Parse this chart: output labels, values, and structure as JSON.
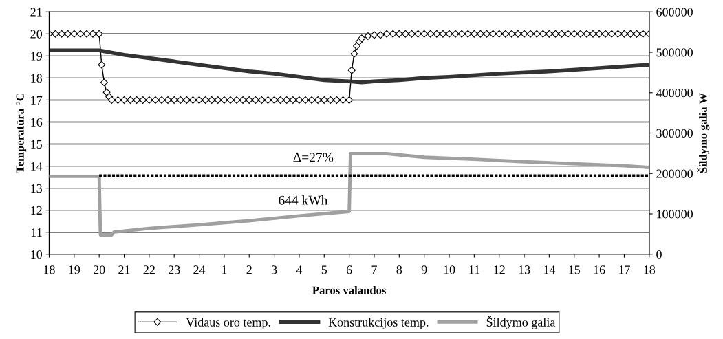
{
  "chart_data": {
    "type": "line",
    "xlabel": "Paros valandos",
    "ylabel": "Temperatūra °C",
    "y2label": "Šildymo galia W",
    "xlim": [
      "2000-01-01T18:00",
      "2000-01-02T18:00"
    ],
    "xticks": [
      {
        "value": "2000-01-01T18:00",
        "label": "18"
      },
      {
        "value": "2000-01-01T19:00",
        "label": "19"
      },
      {
        "value": "2000-01-01T20:00",
        "label": "20"
      },
      {
        "value": "2000-01-01T21:00",
        "label": "21"
      },
      {
        "value": "2000-01-01T22:00",
        "label": "22"
      },
      {
        "value": "2000-01-01T23:00",
        "label": "23"
      },
      {
        "value": "2000-01-02T00:00",
        "label": "24"
      },
      {
        "value": "2000-01-02T01:00",
        "label": "1"
      },
      {
        "value": "2000-01-02T02:00",
        "label": "2"
      },
      {
        "value": "2000-01-02T03:00",
        "label": "3"
      },
      {
        "value": "2000-01-02T04:00",
        "label": "4"
      },
      {
        "value": "2000-01-02T05:00",
        "label": "5"
      },
      {
        "value": "2000-01-02T06:00",
        "label": "6"
      },
      {
        "value": "2000-01-02T07:00",
        "label": "7"
      },
      {
        "value": "2000-01-02T08:00",
        "label": "8"
      },
      {
        "value": "2000-01-02T09:00",
        "label": "9"
      },
      {
        "value": "2000-01-02T10:00",
        "label": "10"
      },
      {
        "value": "2000-01-02T11:00",
        "label": "11"
      },
      {
        "value": "2000-01-02T12:00",
        "label": "12"
      },
      {
        "value": "2000-01-02T13:00",
        "label": "13"
      },
      {
        "value": "2000-01-02T14:00",
        "label": "14"
      },
      {
        "value": "2000-01-02T15:00",
        "label": "15"
      },
      {
        "value": "2000-01-02T16:00",
        "label": "16"
      },
      {
        "value": "2000-01-02T17:00",
        "label": "17"
      },
      {
        "value": "2000-01-02T18:00",
        "label": "18"
      }
    ],
    "ylim": [
      10,
      21
    ],
    "yticks": [
      10,
      11,
      12,
      13,
      14,
      15,
      16,
      17,
      18,
      19,
      20,
      21
    ],
    "y2lim": [
      0,
      600000
    ],
    "y2ticks": [
      0,
      100000,
      200000,
      300000,
      400000,
      500000,
      600000
    ],
    "grid": "y",
    "legend": "bottom",
    "annotations": [
      "Δ=27%",
      "644 kWh"
    ],
    "series": [
      {
        "name": "Vidaus oro temp.",
        "color": "#000000",
        "marker": "diamond",
        "line_style": "solid",
        "x": [
          "2000-01-01T18:00",
          "2000-01-01T18:15",
          "2000-01-01T18:30",
          "2000-01-01T18:45",
          "2000-01-01T19:00",
          "2000-01-01T19:15",
          "2000-01-01T19:30",
          "2000-01-01T19:45",
          "2000-01-01T20:00",
          "2000-01-01T20:06",
          "2000-01-01T20:12",
          "2000-01-01T20:18",
          "2000-01-01T20:24",
          "2000-01-01T20:30",
          "2000-01-01T20:45",
          "2000-01-01T21:00",
          "2000-01-01T21:15",
          "2000-01-01T21:30",
          "2000-01-01T21:45",
          "2000-01-01T22:00",
          "2000-01-01T22:15",
          "2000-01-01T22:30",
          "2000-01-01T22:45",
          "2000-01-01T23:00",
          "2000-01-01T23:15",
          "2000-01-01T23:30",
          "2000-01-01T23:45",
          "2000-01-02T00:00",
          "2000-01-02T00:15",
          "2000-01-02T00:30",
          "2000-01-02T00:45",
          "2000-01-02T01:00",
          "2000-01-02T01:15",
          "2000-01-02T01:30",
          "2000-01-02T01:45",
          "2000-01-02T02:00",
          "2000-01-02T02:15",
          "2000-01-02T02:30",
          "2000-01-02T02:45",
          "2000-01-02T03:00",
          "2000-01-02T03:15",
          "2000-01-02T03:30",
          "2000-01-02T03:45",
          "2000-01-02T04:00",
          "2000-01-02T04:15",
          "2000-01-02T04:30",
          "2000-01-02T04:45",
          "2000-01-02T05:00",
          "2000-01-02T05:15",
          "2000-01-02T05:30",
          "2000-01-02T05:45",
          "2000-01-02T06:00",
          "2000-01-02T06:06",
          "2000-01-02T06:12",
          "2000-01-02T06:18",
          "2000-01-02T06:24",
          "2000-01-02T06:30",
          "2000-01-02T06:45",
          "2000-01-02T07:00",
          "2000-01-02T07:15",
          "2000-01-02T07:30",
          "2000-01-02T07:45",
          "2000-01-02T08:00",
          "2000-01-02T08:15",
          "2000-01-02T08:30",
          "2000-01-02T08:45",
          "2000-01-02T09:00",
          "2000-01-02T09:15",
          "2000-01-02T09:30",
          "2000-01-02T09:45",
          "2000-01-02T10:00",
          "2000-01-02T10:15",
          "2000-01-02T10:30",
          "2000-01-02T10:45",
          "2000-01-02T11:00",
          "2000-01-02T11:15",
          "2000-01-02T11:30",
          "2000-01-02T11:45",
          "2000-01-02T12:00",
          "2000-01-02T12:15",
          "2000-01-02T12:30",
          "2000-01-02T12:45",
          "2000-01-02T13:00",
          "2000-01-02T13:15",
          "2000-01-02T13:30",
          "2000-01-02T13:45",
          "2000-01-02T14:00",
          "2000-01-02T14:15",
          "2000-01-02T14:30",
          "2000-01-02T14:45",
          "2000-01-02T15:00",
          "2000-01-02T15:15",
          "2000-01-02T15:30",
          "2000-01-02T15:45",
          "2000-01-02T16:00",
          "2000-01-02T16:15",
          "2000-01-02T16:30",
          "2000-01-02T16:45",
          "2000-01-02T17:00",
          "2000-01-02T17:15",
          "2000-01-02T17:30",
          "2000-01-02T17:45",
          "2000-01-02T18:00"
        ],
        "values": [
          20,
          20,
          20,
          20,
          20,
          20,
          20,
          20,
          20,
          18.6,
          17.8,
          17.35,
          17.15,
          17,
          17,
          17,
          17,
          17,
          17,
          17,
          17,
          17,
          17,
          17,
          17,
          17,
          17,
          17,
          17,
          17,
          17,
          17,
          17,
          17,
          17,
          17,
          17,
          17,
          17,
          17,
          17,
          17,
          17,
          17,
          17,
          17,
          17,
          17,
          17,
          17,
          17,
          17,
          18.35,
          19.1,
          19.45,
          19.65,
          19.8,
          19.9,
          19.95,
          19.95,
          20,
          20,
          20,
          20,
          20,
          20,
          20,
          20,
          20,
          20,
          20,
          20,
          20,
          20,
          20,
          20,
          20,
          20,
          20,
          20,
          20,
          20,
          20,
          20,
          20,
          20,
          20,
          20,
          20,
          20,
          20,
          20,
          20,
          20,
          20,
          20,
          20,
          20,
          20,
          20,
          20,
          20,
          20
        ]
      },
      {
        "name": "Konstrukcijos temp.",
        "color": "#333333",
        "marker": "none",
        "line_style": "solid",
        "x": [
          "2000-01-01T18:00",
          "2000-01-01T20:00",
          "2000-01-01T21:00",
          "2000-01-01T22:00",
          "2000-01-01T23:00",
          "2000-01-02T00:00",
          "2000-01-02T01:00",
          "2000-01-02T02:00",
          "2000-01-02T03:00",
          "2000-01-02T04:00",
          "2000-01-02T05:00",
          "2000-01-02T06:00",
          "2000-01-02T06:30",
          "2000-01-02T07:00",
          "2000-01-02T08:00",
          "2000-01-02T09:00",
          "2000-01-02T10:00",
          "2000-01-02T12:00",
          "2000-01-02T14:00",
          "2000-01-02T16:00",
          "2000-01-02T18:00"
        ],
        "values": [
          19.25,
          19.25,
          19.05,
          18.9,
          18.75,
          18.6,
          18.45,
          18.3,
          18.2,
          18.05,
          17.9,
          17.85,
          17.8,
          17.85,
          17.9,
          18.0,
          18.05,
          18.2,
          18.3,
          18.45,
          18.6
        ]
      },
      {
        "name": "Šildymo galia",
        "color": "#a0a0a0",
        "marker": "none",
        "line_style": "solid",
        "axis": "y2",
        "x": [
          "2000-01-01T18:00",
          "2000-01-01T20:00",
          "2000-01-01T20:03",
          "2000-01-01T20:30",
          "2000-01-01T20:36",
          "2000-01-01T22:00",
          "2000-01-02T00:00",
          "2000-01-02T02:00",
          "2000-01-02T04:00",
          "2000-01-02T06:00",
          "2000-01-02T06:03",
          "2000-01-02T07:30",
          "2000-01-02T09:00",
          "2000-01-02T11:00",
          "2000-01-02T13:00",
          "2000-01-02T15:00",
          "2000-01-02T17:00",
          "2000-01-02T18:00"
        ],
        "values": [
          193000,
          193000,
          48000,
          48000,
          55000,
          64000,
          73000,
          83000,
          95000,
          106000,
          249000,
          249000,
          240000,
          235000,
          229000,
          224000,
          219000,
          215000
        ]
      },
      {
        "color": "#000000",
        "marker": "none",
        "line_style": "dotted",
        "axis": "y2",
        "x": [
          "2000-01-01T20:00",
          "2000-01-02T18:00"
        ],
        "values": [
          195000,
          195000
        ]
      }
    ]
  }
}
